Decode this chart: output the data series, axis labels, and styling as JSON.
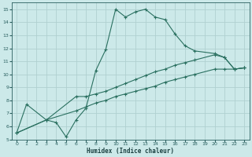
{
  "xlabel": "Humidex (Indice chaleur)",
  "bg_color": "#cce9e9",
  "grid_color": "#b0d0d0",
  "line_color": "#2a7060",
  "xlim": [
    -0.5,
    23.5
  ],
  "ylim": [
    5,
    15.5
  ],
  "xticks": [
    0,
    1,
    2,
    3,
    4,
    5,
    6,
    7,
    8,
    9,
    10,
    11,
    12,
    13,
    14,
    15,
    16,
    17,
    18,
    19,
    20,
    21,
    22,
    23
  ],
  "yticks": [
    5,
    6,
    7,
    8,
    9,
    10,
    11,
    12,
    13,
    14,
    15
  ],
  "line1_x": [
    0,
    1,
    3,
    4,
    5,
    6,
    7,
    8,
    9,
    10,
    11,
    12,
    13,
    14,
    15,
    16,
    17,
    18,
    20,
    21,
    22,
    23
  ],
  "line1_y": [
    5.5,
    7.7,
    6.5,
    6.3,
    5.2,
    6.5,
    7.4,
    10.3,
    11.9,
    15.0,
    14.4,
    14.8,
    15.0,
    14.4,
    14.2,
    13.1,
    12.2,
    11.8,
    11.6,
    11.3,
    10.4,
    10.5
  ],
  "line2_x": [
    0,
    3,
    6,
    7,
    8,
    9,
    10,
    11,
    12,
    13,
    14,
    15,
    16,
    17,
    18,
    20,
    21,
    22,
    23
  ],
  "line2_y": [
    5.5,
    6.5,
    8.3,
    8.3,
    8.5,
    8.7,
    9.0,
    9.3,
    9.6,
    9.9,
    10.2,
    10.4,
    10.7,
    10.9,
    11.1,
    11.5,
    11.3,
    10.4,
    10.5
  ],
  "line3_x": [
    0,
    3,
    6,
    7,
    8,
    9,
    10,
    11,
    12,
    13,
    14,
    15,
    16,
    17,
    18,
    20,
    21,
    22,
    23
  ],
  "line3_y": [
    5.5,
    6.5,
    7.2,
    7.5,
    7.8,
    8.0,
    8.3,
    8.5,
    8.7,
    8.9,
    9.1,
    9.4,
    9.6,
    9.8,
    10.0,
    10.4,
    10.4,
    10.4,
    10.5
  ]
}
